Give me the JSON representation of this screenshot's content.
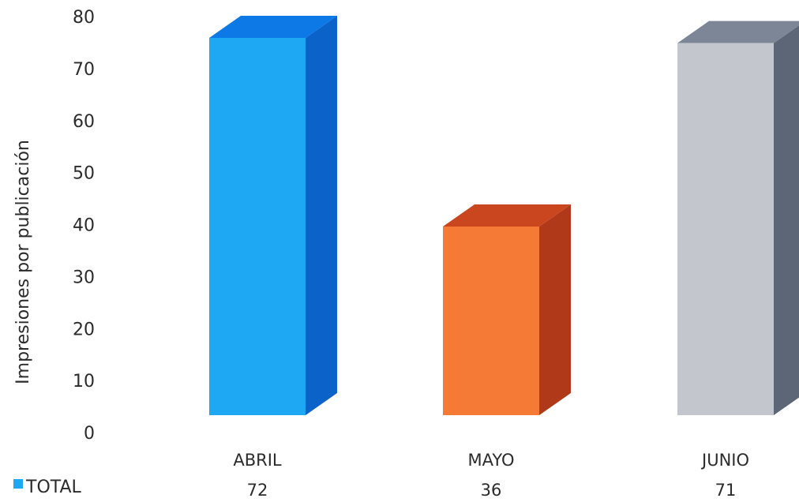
{
  "chart_data": {
    "type": "bar",
    "style": "3d",
    "ylabel": "Impresiones por publicación",
    "ylim": [
      0,
      80
    ],
    "yticks": [
      0,
      10,
      20,
      30,
      40,
      50,
      60,
      70,
      80
    ],
    "categories": [
      "ABRIL",
      "MAYO",
      "JUNIO"
    ],
    "series": [
      {
        "name": "TOTAL",
        "values": [
          72,
          36,
          71
        ]
      }
    ],
    "data_labels": [
      "72",
      "36",
      "71"
    ],
    "bar_colors": [
      {
        "front": "#1ea7f3",
        "side": "#0b62c9",
        "top": "#0d79e6"
      },
      {
        "front": "#f47a35",
        "side": "#b0391a",
        "top": "#c9461f"
      },
      {
        "front": "#c3c6cc",
        "side": "#5c6676",
        "top": "#7c8696"
      }
    ],
    "legend": {
      "label": "TOTAL",
      "color": "#1ea7f3",
      "position": "bottom-left"
    },
    "grid": false
  }
}
